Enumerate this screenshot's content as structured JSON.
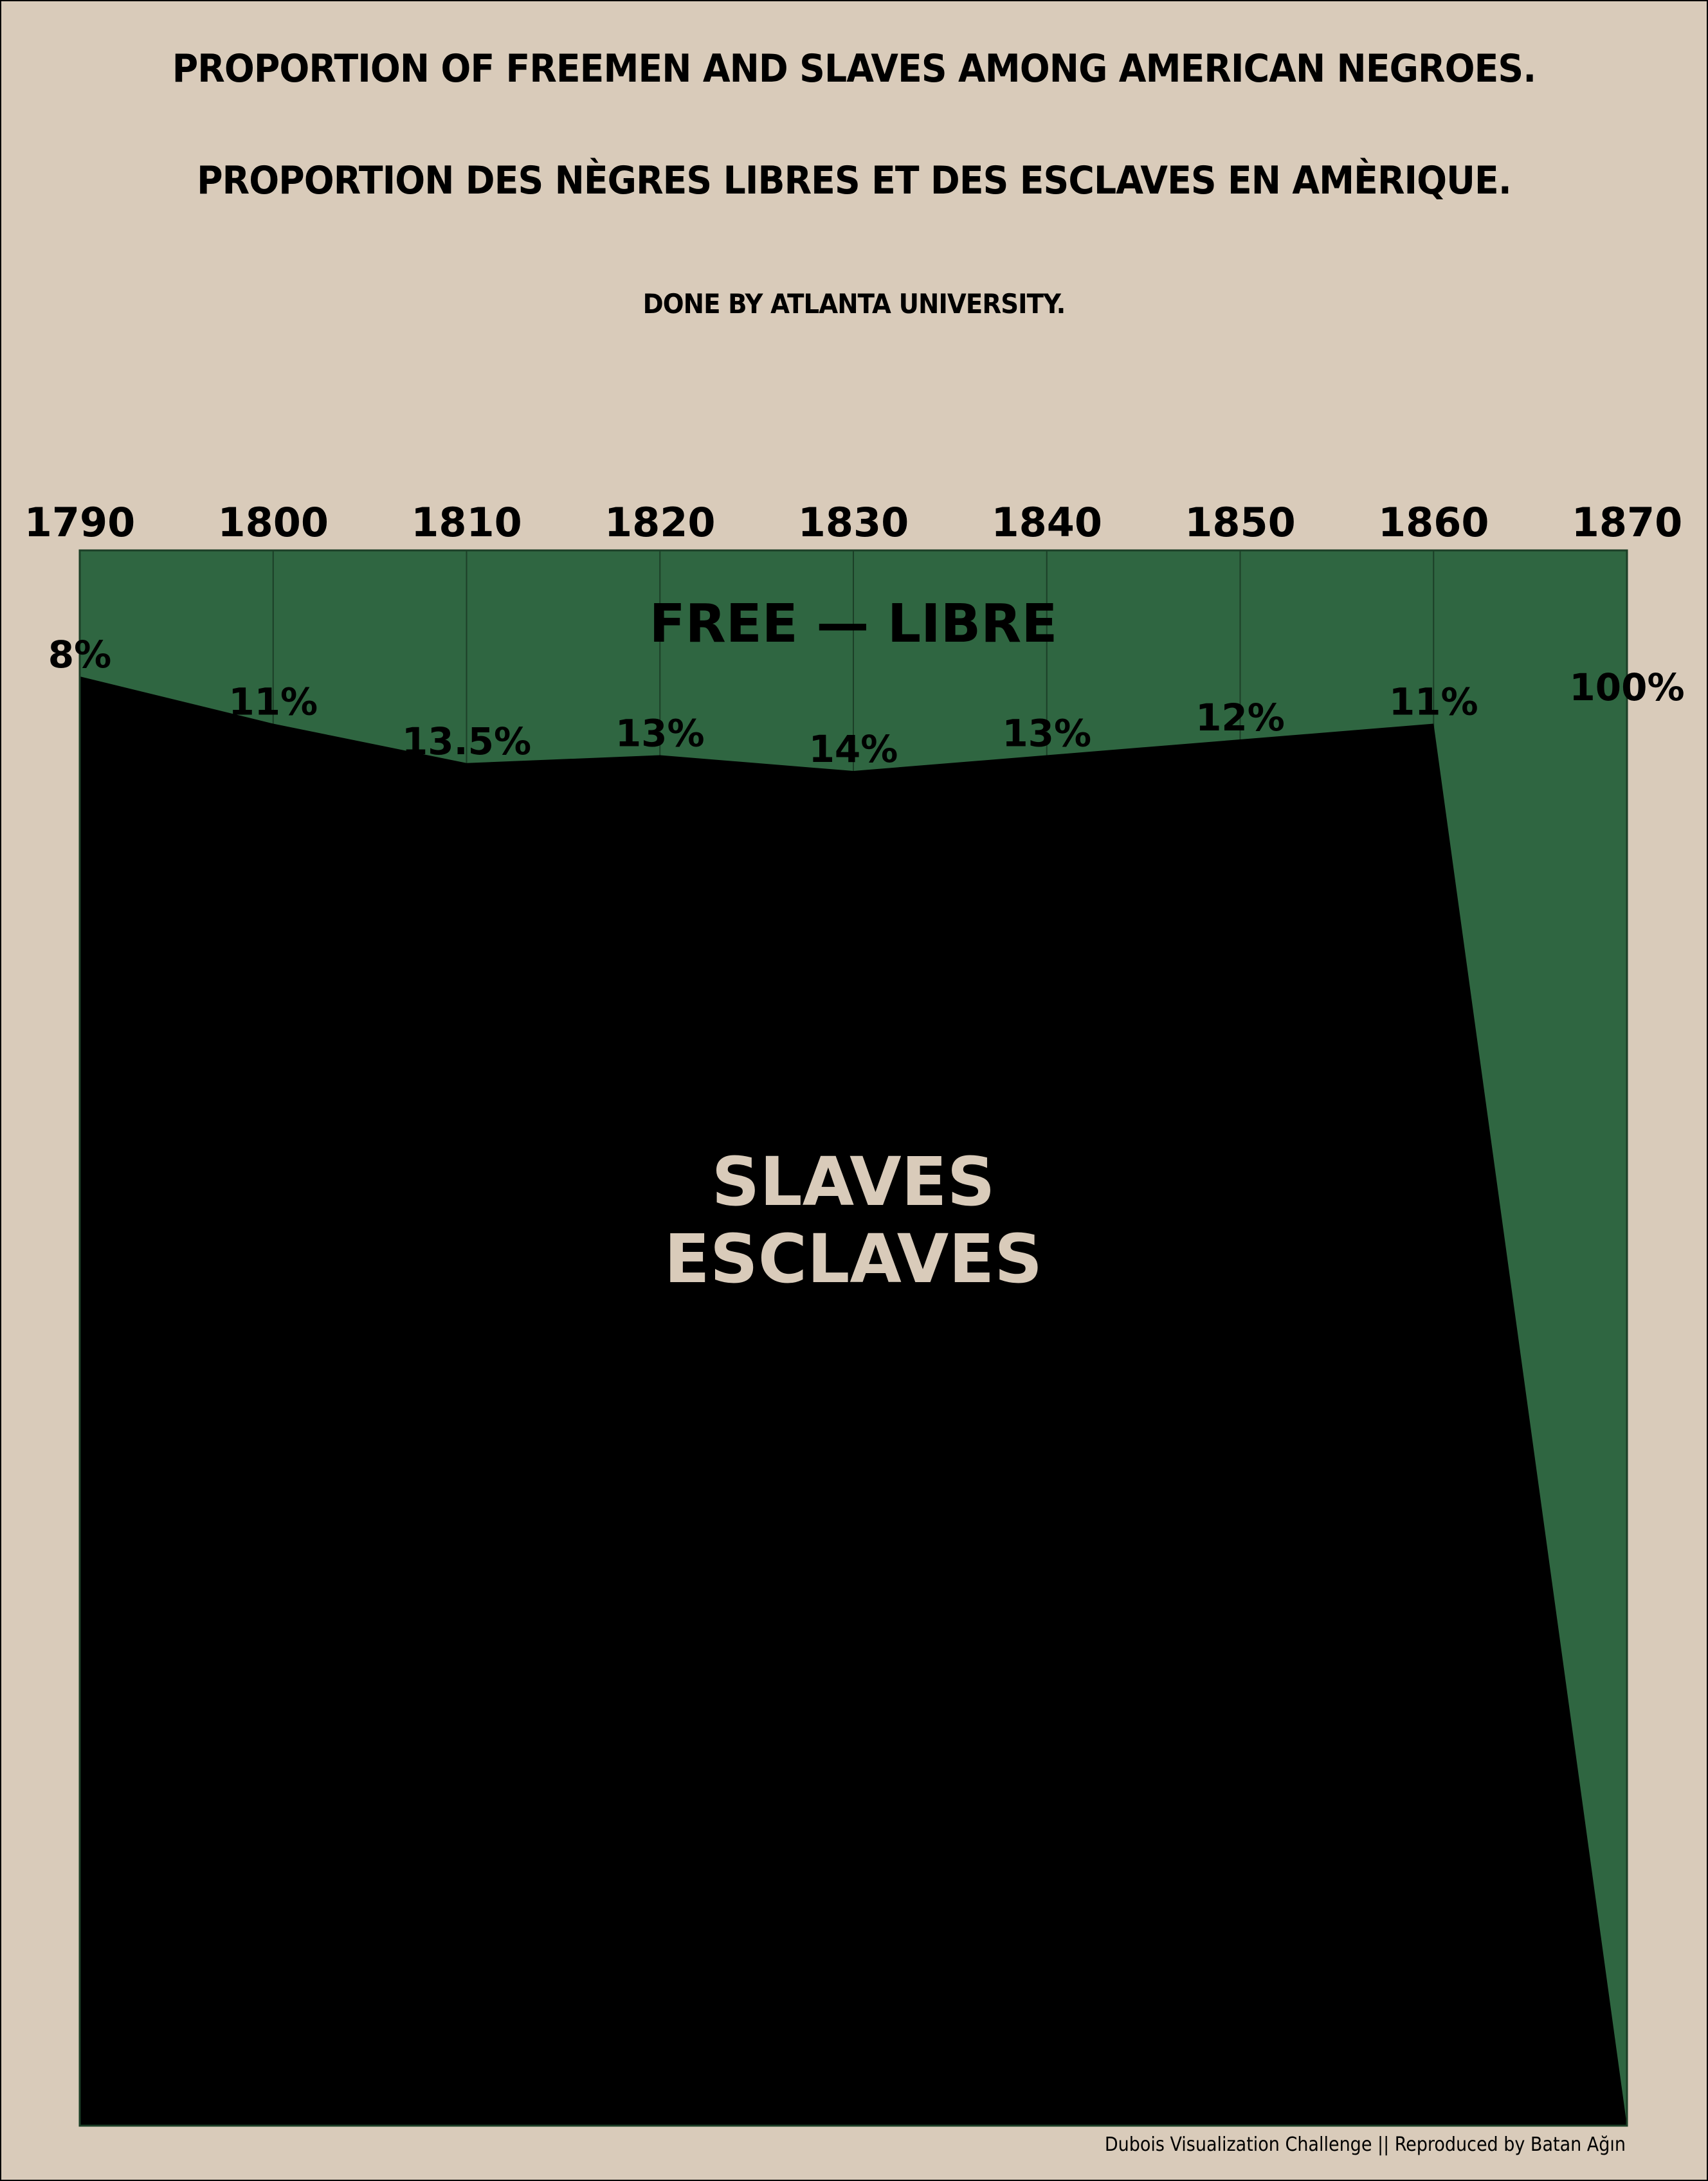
{
  "title": "PROPORTION OF FREEMEN AND SLAVES AMONG AMERICAN NEGROES.",
  "subtitle": "PROPORTION DES NÈGRES LIBRES ET DES ESCLAVES EN AMÈRIQUE.",
  "byline": "DONE BY ATLANTA UNIVERSITY.",
  "credit": "Dubois Visualization Challenge || Reproduced by Batan Ağın",
  "colors": {
    "background": "#d9cbba",
    "free": "#2f6641",
    "slaves": "#000000",
    "slaves_label": "#d9cbba"
  },
  "chart_data": {
    "type": "area",
    "x": [
      1790,
      1800,
      1810,
      1820,
      1830,
      1840,
      1850,
      1860,
      1870
    ],
    "series": [
      {
        "name": "FREE — LIBRE",
        "values": [
          8,
          11,
          13.5,
          13,
          14,
          13,
          12,
          11,
          100
        ],
        "labels": [
          "8%",
          "11%",
          "13.5%",
          "13%",
          "14%",
          "13%",
          "12%",
          "11%",
          "100%"
        ]
      },
      {
        "name_lines": [
          "SLAVES",
          "ESCLAVES"
        ],
        "values": [
          92,
          89,
          86.5,
          87,
          86,
          87,
          88,
          89,
          0
        ]
      }
    ],
    "ylim": [
      0,
      100
    ],
    "stacked": true,
    "x_axis_position": "top",
    "vertical_gridlines": true
  }
}
